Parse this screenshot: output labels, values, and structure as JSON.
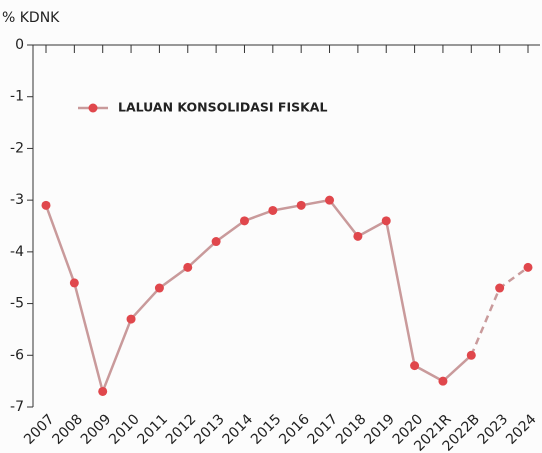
{
  "chart_data": {
    "type": "line",
    "y_label": "% KDNK",
    "categories": [
      "2007",
      "2008",
      "2009",
      "2010",
      "2011",
      "2012",
      "2013",
      "2014",
      "2015",
      "2016",
      "2017",
      "2018",
      "2019",
      "2020",
      "2021R",
      "2022B",
      "2023",
      "2024"
    ],
    "series": [
      {
        "name": "LALUAN KONSOLIDASI FISKAL",
        "color": "#c99a9b",
        "marker_color": "#e0474c",
        "dashed_after": "2022B",
        "values": [
          -3.1,
          -4.6,
          -6.7,
          -5.3,
          -4.7,
          -4.3,
          -3.8,
          -3.4,
          -3.2,
          -3.1,
          -3.0,
          -3.7,
          -3.4,
          -6.2,
          -6.5,
          -6.0,
          -4.7,
          -4.3
        ]
      }
    ],
    "ylim": [
      -7,
      0
    ],
    "yticks": [
      0,
      -1,
      -2,
      -3,
      -4,
      -5,
      -6,
      -7
    ],
    "grid": false,
    "legend": "upper left"
  }
}
